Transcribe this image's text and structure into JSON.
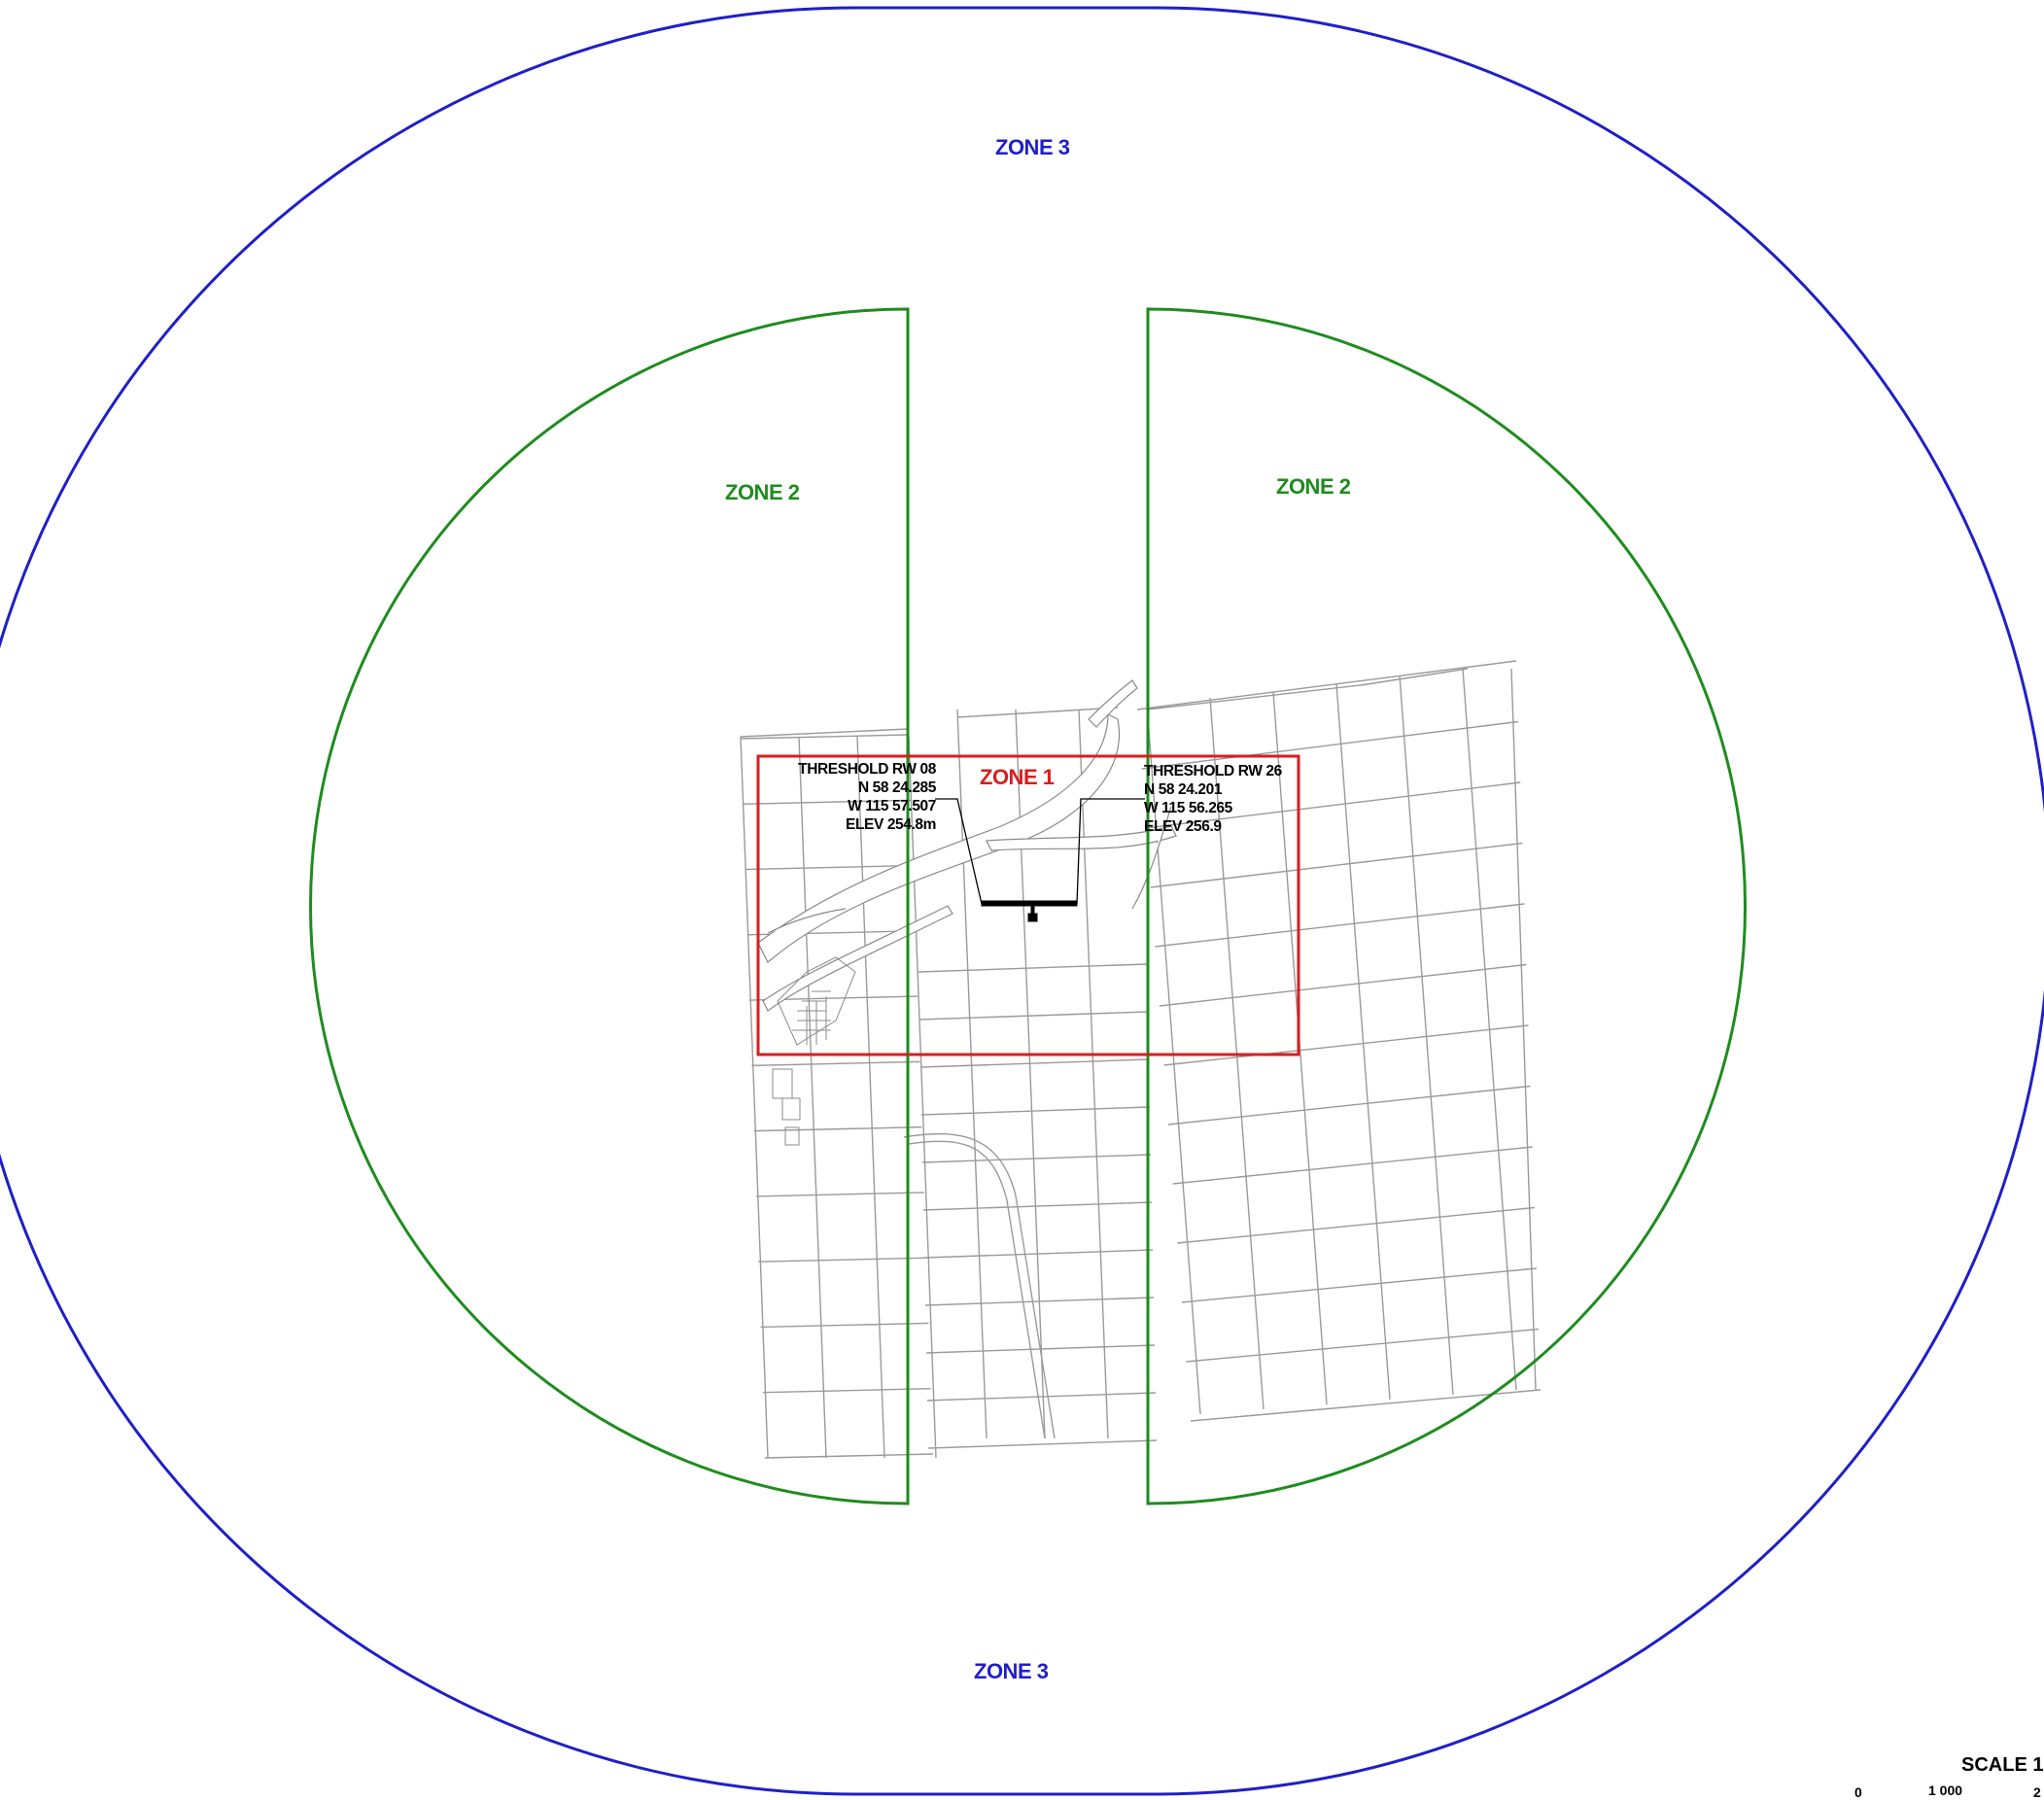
{
  "zones": {
    "zone3_top": "ZONE 3",
    "zone3_bottom": "ZONE 3",
    "zone2_left": "ZONE 2",
    "zone2_right": "ZONE 2",
    "zone1": "ZONE 1"
  },
  "threshold_rw08": {
    "title": "THRESHOLD RW 08",
    "lat": "N 58 24.285",
    "lon": "W 115 57.507",
    "elev": "ELEV 254.8m"
  },
  "threshold_rw26": {
    "title": "THRESHOLD RW 26",
    "lat": "N 58 24.201",
    "lon": "W 115 56.265",
    "elev": "ELEV 256.9"
  },
  "scale": {
    "title": "SCALE 1",
    "tick_0": "0",
    "tick_1000": "1 000",
    "tick_2": "2"
  },
  "colors": {
    "zone3": "#1f1fc8",
    "zone2": "#1e8c1e",
    "zone1": "#d81e1e",
    "parcel_lines": "#9a9a9a",
    "runway": "#000000"
  }
}
